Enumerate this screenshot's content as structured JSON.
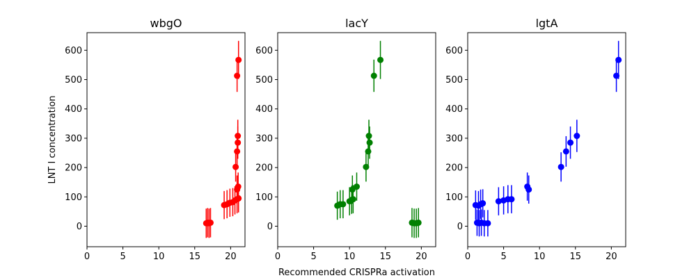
{
  "chart_data": [
    {
      "type": "scatter",
      "title": "wbgO",
      "xlabel": "",
      "ylabel": "LNT I concentration",
      "xlim": [
        0,
        22
      ],
      "ylim": [
        -70,
        660
      ],
      "xticks": [
        0,
        5,
        10,
        15,
        20
      ],
      "yticks": [
        0,
        100,
        200,
        300,
        400,
        500,
        600
      ],
      "grid": false,
      "color": "#ff0000",
      "points": [
        {
          "x": 16.6,
          "y": 10,
          "err": 50
        },
        {
          "x": 16.8,
          "y": 12,
          "err": 50
        },
        {
          "x": 17.0,
          "y": 10,
          "err": 50
        },
        {
          "x": 17.2,
          "y": 12,
          "err": 50
        },
        {
          "x": 19.1,
          "y": 72,
          "err": 48
        },
        {
          "x": 19.5,
          "y": 75,
          "err": 48
        },
        {
          "x": 19.9,
          "y": 80,
          "err": 48
        },
        {
          "x": 20.3,
          "y": 82,
          "err": 48
        },
        {
          "x": 20.6,
          "y": 88,
          "err": 48
        },
        {
          "x": 20.9,
          "y": 92,
          "err": 48
        },
        {
          "x": 21.1,
          "y": 95,
          "err": 48
        },
        {
          "x": 20.9,
          "y": 125,
          "err": 48
        },
        {
          "x": 21.05,
          "y": 135,
          "err": 48
        },
        {
          "x": 20.7,
          "y": 202,
          "err": 50
        },
        {
          "x": 20.9,
          "y": 255,
          "err": 52
        },
        {
          "x": 21.0,
          "y": 285,
          "err": 55
        },
        {
          "x": 21.0,
          "y": 308,
          "err": 55
        },
        {
          "x": 20.9,
          "y": 513,
          "err": 55
        },
        {
          "x": 21.1,
          "y": 567,
          "err": 65
        }
      ]
    },
    {
      "type": "scatter",
      "title": "lacY",
      "xlabel": "Recommended CRISPRa activation",
      "ylabel": "",
      "xlim": [
        0,
        22
      ],
      "ylim": [
        -70,
        660
      ],
      "xticks": [
        0,
        5,
        10,
        15,
        20
      ],
      "yticks": [
        0,
        100,
        200,
        300,
        400,
        500,
        600
      ],
      "grid": false,
      "color": "#008000",
      "points": [
        {
          "x": 8.3,
          "y": 70,
          "err": 48
        },
        {
          "x": 8.7,
          "y": 75,
          "err": 48
        },
        {
          "x": 9.1,
          "y": 75,
          "err": 48
        },
        {
          "x": 10.0,
          "y": 85,
          "err": 48
        },
        {
          "x": 10.3,
          "y": 90,
          "err": 48
        },
        {
          "x": 10.5,
          "y": 92,
          "err": 48
        },
        {
          "x": 10.4,
          "y": 125,
          "err": 48
        },
        {
          "x": 11.0,
          "y": 135,
          "err": 48
        },
        {
          "x": 12.3,
          "y": 202,
          "err": 50
        },
        {
          "x": 12.6,
          "y": 255,
          "err": 52
        },
        {
          "x": 12.8,
          "y": 285,
          "err": 55
        },
        {
          "x": 12.7,
          "y": 308,
          "err": 55
        },
        {
          "x": 13.4,
          "y": 513,
          "err": 55
        },
        {
          "x": 14.3,
          "y": 567,
          "err": 65
        },
        {
          "x": 18.7,
          "y": 12,
          "err": 50
        },
        {
          "x": 19.0,
          "y": 10,
          "err": 50
        },
        {
          "x": 19.3,
          "y": 10,
          "err": 50
        },
        {
          "x": 19.6,
          "y": 12,
          "err": 50
        }
      ]
    },
    {
      "type": "scatter",
      "title": "lgtA",
      "xlabel": "",
      "ylabel": "",
      "xlim": [
        0,
        22
      ],
      "ylim": [
        -70,
        660
      ],
      "xticks": [
        0,
        5,
        10,
        15,
        20
      ],
      "yticks": [
        0,
        100,
        200,
        300,
        400,
        500,
        600
      ],
      "grid": false,
      "color": "#0000ff",
      "points": [
        {
          "x": 1.1,
          "y": 72,
          "err": 50
        },
        {
          "x": 1.3,
          "y": 12,
          "err": 45
        },
        {
          "x": 1.5,
          "y": 70,
          "err": 50
        },
        {
          "x": 1.6,
          "y": 10,
          "err": 45
        },
        {
          "x": 1.8,
          "y": 75,
          "err": 50
        },
        {
          "x": 1.9,
          "y": 12,
          "err": 45
        },
        {
          "x": 2.1,
          "y": 78,
          "err": 48
        },
        {
          "x": 2.3,
          "y": 10,
          "err": 45
        },
        {
          "x": 2.8,
          "y": 10,
          "err": 45
        },
        {
          "x": 4.3,
          "y": 85,
          "err": 48
        },
        {
          "x": 5.0,
          "y": 88,
          "err": 48
        },
        {
          "x": 5.6,
          "y": 92,
          "err": 48
        },
        {
          "x": 6.1,
          "y": 92,
          "err": 48
        },
        {
          "x": 8.3,
          "y": 135,
          "err": 48
        },
        {
          "x": 8.5,
          "y": 125,
          "err": 48
        },
        {
          "x": 13.0,
          "y": 202,
          "err": 50
        },
        {
          "x": 13.7,
          "y": 255,
          "err": 52
        },
        {
          "x": 14.3,
          "y": 285,
          "err": 55
        },
        {
          "x": 15.2,
          "y": 308,
          "err": 55
        },
        {
          "x": 20.7,
          "y": 513,
          "err": 55
        },
        {
          "x": 21.0,
          "y": 567,
          "err": 65
        }
      ]
    }
  ]
}
